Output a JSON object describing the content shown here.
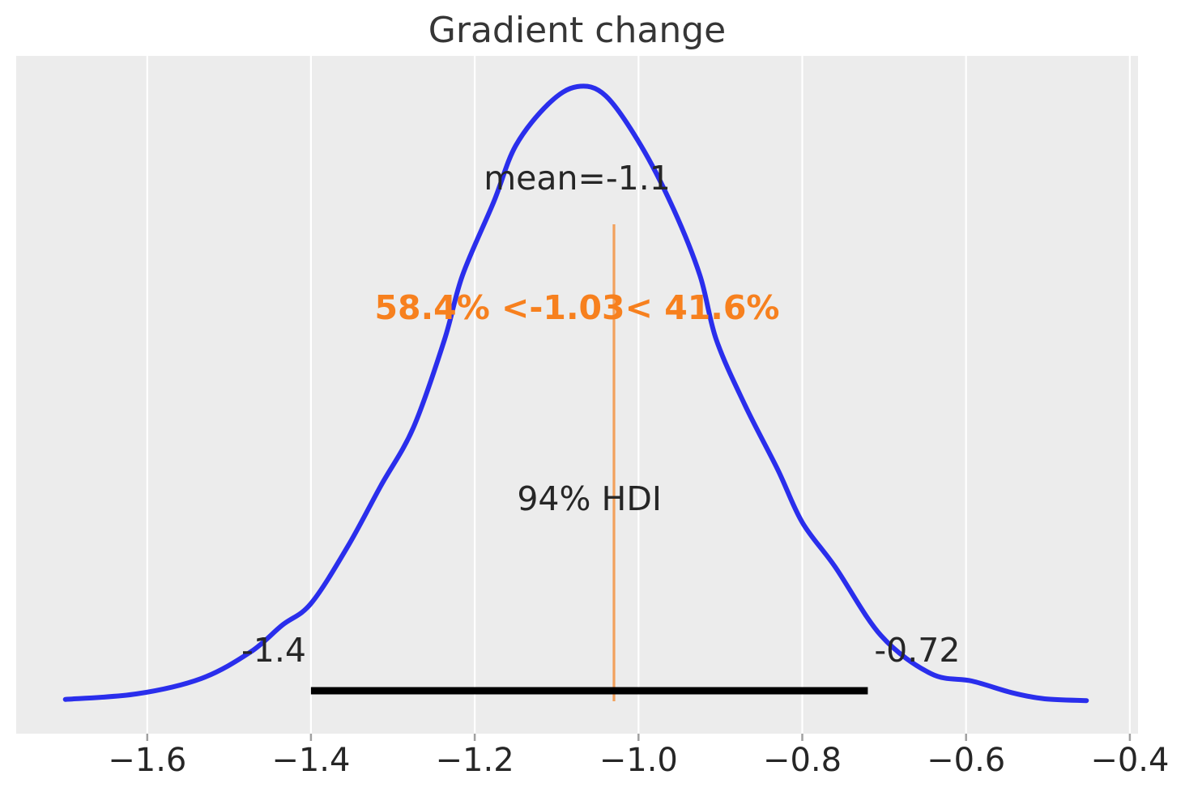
{
  "title": "Gradient change",
  "annotations": {
    "mean": "mean=-1.1",
    "ref_val": "58.4% <-1.03< 41.6%",
    "hdi": "94% HDI",
    "hdi_lower": "-1.4",
    "hdi_upper": "-0.72"
  },
  "colors": {
    "curve": "#2a2eec",
    "ref_line": "rgba(245,126,23,0.68)",
    "ref_text": "#f7801e",
    "axes_bg": "#ececec",
    "grid": "#ffffff",
    "text": "#262626",
    "hdi_bar": "#000000",
    "tick_mark": "#a0a0a0"
  },
  "chart_data": {
    "type": "line",
    "subtype": "posterior-kde",
    "title": "Gradient change",
    "xlabel": "",
    "ylabel": "",
    "xlim": [
      -1.76,
      -0.39
    ],
    "grid": "vertical-white",
    "legend": "none",
    "x_ticks": [
      -1.6,
      -1.4,
      -1.2,
      -1.0,
      -0.8,
      -0.6,
      -0.4
    ],
    "x_tick_labels": [
      "−1.6",
      "−1.4",
      "−1.2",
      "−1.0",
      "−0.8",
      "−0.6",
      "−0.4"
    ],
    "mean": -1.1,
    "ref_val": -1.03,
    "pct_below_ref": 58.4,
    "pct_above_ref": 41.6,
    "hdi_prob": 94,
    "hdi_interval": [
      -1.4,
      -0.72
    ],
    "curve_points": [
      [
        -1.7,
        0.003
      ],
      [
        -1.613,
        0.012
      ],
      [
        -1.534,
        0.037
      ],
      [
        -1.474,
        0.08
      ],
      [
        -1.435,
        0.124
      ],
      [
        -1.4,
        0.159
      ],
      [
        -1.355,
        0.252
      ],
      [
        -1.315,
        0.35
      ],
      [
        -1.275,
        0.445
      ],
      [
        -1.237,
        0.588
      ],
      [
        -1.215,
        0.693
      ],
      [
        -1.177,
        0.812
      ],
      [
        -1.15,
        0.904
      ],
      [
        -1.11,
        0.972
      ],
      [
        -1.075,
        1.0
      ],
      [
        -1.04,
        0.985
      ],
      [
        -0.997,
        0.904
      ],
      [
        -0.957,
        0.8
      ],
      [
        -0.925,
        0.693
      ],
      [
        -0.905,
        0.588
      ],
      [
        -0.87,
        0.482
      ],
      [
        -0.83,
        0.377
      ],
      [
        -0.8,
        0.291
      ],
      [
        -0.76,
        0.219
      ],
      [
        -0.704,
        0.107
      ],
      [
        -0.643,
        0.045
      ],
      [
        -0.593,
        0.033
      ],
      [
        -0.544,
        0.014
      ],
      [
        -0.504,
        0.004
      ],
      [
        -0.453,
        0.001
      ]
    ]
  }
}
